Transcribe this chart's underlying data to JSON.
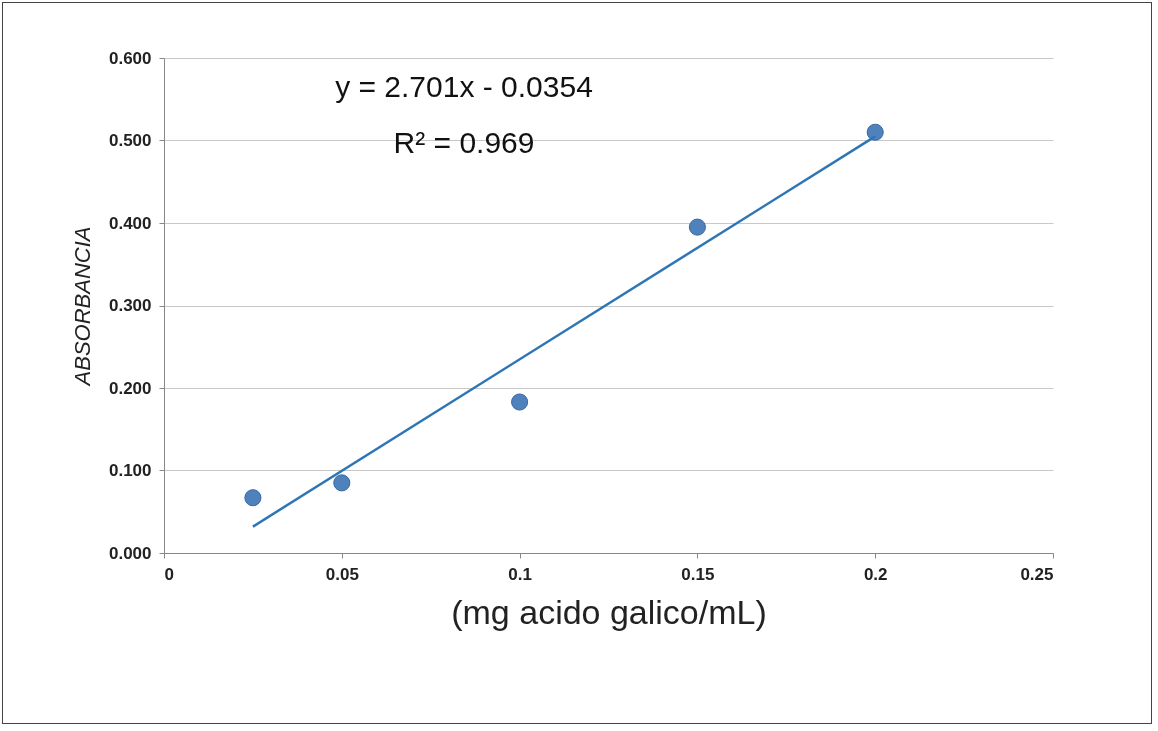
{
  "chart_data": {
    "type": "scatter",
    "xlabel": "(mg acido galico/mL)",
    "ylabel": "ABSORBANCIA",
    "xlim": [
      0,
      0.25
    ],
    "xticks": [
      0,
      0.05,
      0.1,
      0.15,
      0.2,
      0.25
    ],
    "ylim": [
      0,
      0.6
    ],
    "yticks": [
      {
        "value": 0,
        "label": "0.000"
      },
      {
        "value": 0.1,
        "label": "0.100"
      },
      {
        "value": 0.2,
        "label": "0.200"
      },
      {
        "value": 0.3,
        "label": "0.300"
      },
      {
        "value": 0.4,
        "label": "0.400"
      },
      {
        "value": 0.5,
        "label": "0.500"
      },
      {
        "value": 0.6,
        "label": "0.600"
      }
    ],
    "grid": "y",
    "annotations": [
      "y = 2.701x - 0.0354",
      "R² = 0.969"
    ],
    "series": [
      {
        "marker": "circle",
        "color": "#4f81bd",
        "x": [
          0.025,
          0.05,
          0.1,
          0.15,
          0.2
        ],
        "values": [
          0.067,
          0.085,
          0.183,
          0.395,
          0.51
        ]
      },
      {
        "type": "line",
        "color": "#2e75b6",
        "line_style": "solid",
        "x": [
          0.025,
          0.2
        ],
        "values": [
          0.032,
          0.505
        ]
      }
    ]
  }
}
